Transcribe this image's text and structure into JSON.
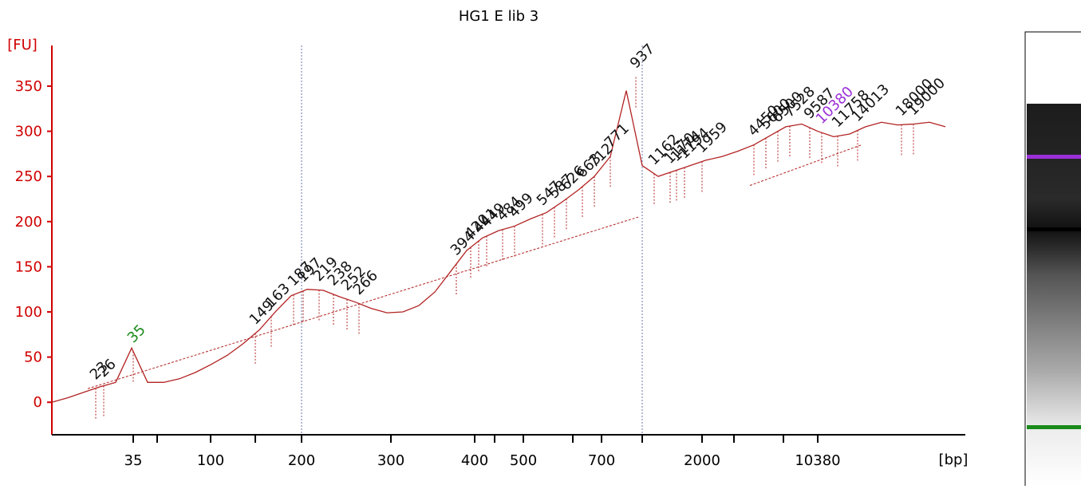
{
  "chart_data": {
    "type": "line",
    "title": "HG1 E lib 3",
    "y_label": "[FU]",
    "x_label": "[bp]",
    "ylim": [
      -36,
      395
    ],
    "yticks": [
      0,
      50,
      100,
      150,
      200,
      250,
      300,
      350
    ],
    "xticks": [
      35,
      null,
      100,
      null,
      200,
      300,
      400,
      null,
      500,
      null,
      700,
      null,
      2000,
      null,
      null,
      10380
    ],
    "axis_color": "#d00000",
    "series": [
      {
        "name": "HG1 E lib 3",
        "color": "#b22222",
        "values": [
          0,
          5,
          11,
          17,
          22,
          60,
          22,
          22,
          26,
          33,
          42,
          52,
          65,
          80,
          100,
          118,
          125,
          124,
          117,
          111,
          104,
          99,
          100,
          107,
          122,
          145,
          168,
          182,
          190,
          195,
          203,
          210,
          222,
          235,
          250,
          272,
          345,
          262,
          250,
          256,
          262,
          268,
          272,
          278,
          285,
          295,
          305,
          308,
          300,
          294,
          297,
          305,
          310,
          307,
          308,
          310,
          305
        ]
      }
    ],
    "label_color": "#111111",
    "peaks": [
      {
        "size": 23
      },
      {
        "size": 26
      },
      {
        "size": 35,
        "color": "#1a8a1a"
      },
      {
        "size": 149
      },
      {
        "size": 163
      },
      {
        "size": 187
      },
      {
        "size": 197
      },
      {
        "size": 219
      },
      {
        "size": 238
      },
      {
        "size": 252
      },
      {
        "size": 266
      },
      {
        "size": 394
      },
      {
        "size": 420
      },
      {
        "size": 441
      },
      {
        "size": 449
      },
      {
        "size": 484
      },
      {
        "size": 499
      },
      {
        "size": 547
      },
      {
        "size": 587
      },
      {
        "size": 626
      },
      {
        "size": 663
      },
      {
        "size": 712
      },
      {
        "size": 771
      },
      {
        "size": 937
      },
      {
        "size": 1162
      },
      {
        "size": 1170
      },
      {
        "size": 1174
      },
      {
        "size": 1194
      },
      {
        "size": 1959
      },
      {
        "size": 4450
      },
      {
        "size": 5600
      },
      {
        "size": 6500
      },
      {
        "size": 7528
      },
      {
        "size": 9587
      },
      {
        "size": 10380,
        "color": "#9b30d9"
      },
      {
        "size": 11758
      },
      {
        "size": 14013
      },
      {
        "size": 18000
      },
      {
        "size": 19000
      }
    ]
  }
}
